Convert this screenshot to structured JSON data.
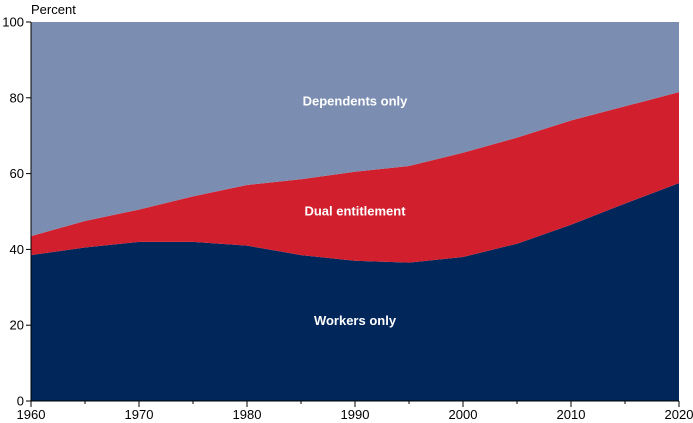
{
  "chart_data": {
    "type": "area",
    "stacked": true,
    "ylabel": "Percent",
    "xlabel": "",
    "xlim": [
      1960,
      2020
    ],
    "ylim": [
      0,
      100
    ],
    "xticks": [
      1960,
      1970,
      1980,
      1990,
      2000,
      2010,
      2020
    ],
    "yticks": [
      0,
      20,
      40,
      60,
      80,
      100
    ],
    "grid": false,
    "legend": "none",
    "x": [
      1960,
      1965,
      1970,
      1975,
      1980,
      1985,
      1990,
      1995,
      2000,
      2005,
      2010,
      2014,
      2020
    ],
    "series": [
      {
        "name": "Workers only",
        "color": "#00265a",
        "values": [
          38.5,
          40.5,
          42.0,
          42.0,
          41.0,
          38.5,
          37.0,
          36.5,
          38.0,
          41.5,
          46.5,
          51.0,
          57.5
        ]
      },
      {
        "name": "Dual entitlement",
        "color": "#d21f2e",
        "values": [
          5.0,
          7.0,
          8.5,
          12.0,
          16.0,
          20.0,
          23.5,
          25.5,
          27.5,
          28.0,
          27.5,
          26.0,
          24.0
        ]
      },
      {
        "name": "Dependents only",
        "color": "#7b8db0",
        "values": [
          56.5,
          52.5,
          49.5,
          46.0,
          43.0,
          41.5,
          39.5,
          38.0,
          34.5,
          30.5,
          26.0,
          23.0,
          18.5
        ]
      }
    ],
    "annotations": [
      {
        "text": "Dependents only",
        "x": 1990,
        "y": 78
      },
      {
        "text": "Dual entitlement",
        "x": 1990,
        "y": 49
      },
      {
        "text": "Workers only",
        "x": 1990,
        "y": 20
      }
    ]
  }
}
